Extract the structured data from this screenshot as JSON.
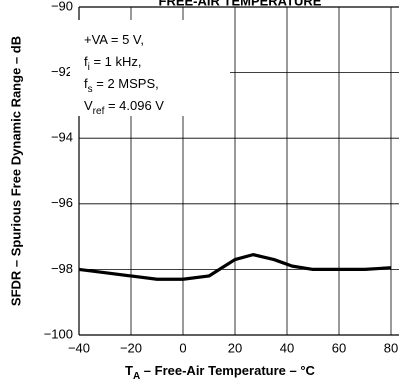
{
  "chart_data": {
    "type": "line",
    "title": "FREE-AIR TEMPERATURE",
    "x_label": {
      "main": "T",
      "sub": "A",
      "tail": " – Free-Air Temperature – °C"
    },
    "y_label": "SFDR – Spurious Free Dynamic Range – dB",
    "annotation": [
      {
        "main": "+VA = 5 V,"
      },
      {
        "main": "f",
        "sub": "i",
        "tail": " = 1 kHz,"
      },
      {
        "main": "f",
        "sub": "s",
        "tail": " = 2 MSPS,"
      },
      {
        "main": "V",
        "sub": "ref",
        "tail": " = 4.096 V"
      }
    ],
    "x": [
      -40,
      -30,
      -20,
      -10,
      0,
      10,
      15,
      20,
      27,
      35,
      42,
      50,
      60,
      70,
      80
    ],
    "series": [
      {
        "color": "#000000",
        "values": [
          -98.0,
          -98.1,
          -98.2,
          -98.3,
          -98.3,
          -98.2,
          -97.95,
          -97.7,
          -97.55,
          -97.7,
          -97.9,
          -98.0,
          -98.0,
          -98.0,
          -97.95
        ]
      }
    ],
    "xlim": [
      -40,
      80
    ],
    "xticks": [
      {
        "value": -40,
        "label": "−40"
      },
      {
        "value": -20,
        "label": "−20"
      },
      0,
      20,
      40,
      60,
      80
    ],
    "ylim": [
      -100,
      -90
    ],
    "yticks": [
      {
        "value": -100,
        "label": "−100"
      },
      {
        "value": -98,
        "label": "−98"
      },
      {
        "value": -96,
        "label": "−96"
      },
      {
        "value": -94,
        "label": "−94"
      },
      {
        "value": -92,
        "label": "−92"
      },
      {
        "value": -90,
        "label": "−90"
      }
    ],
    "grid": true
  }
}
